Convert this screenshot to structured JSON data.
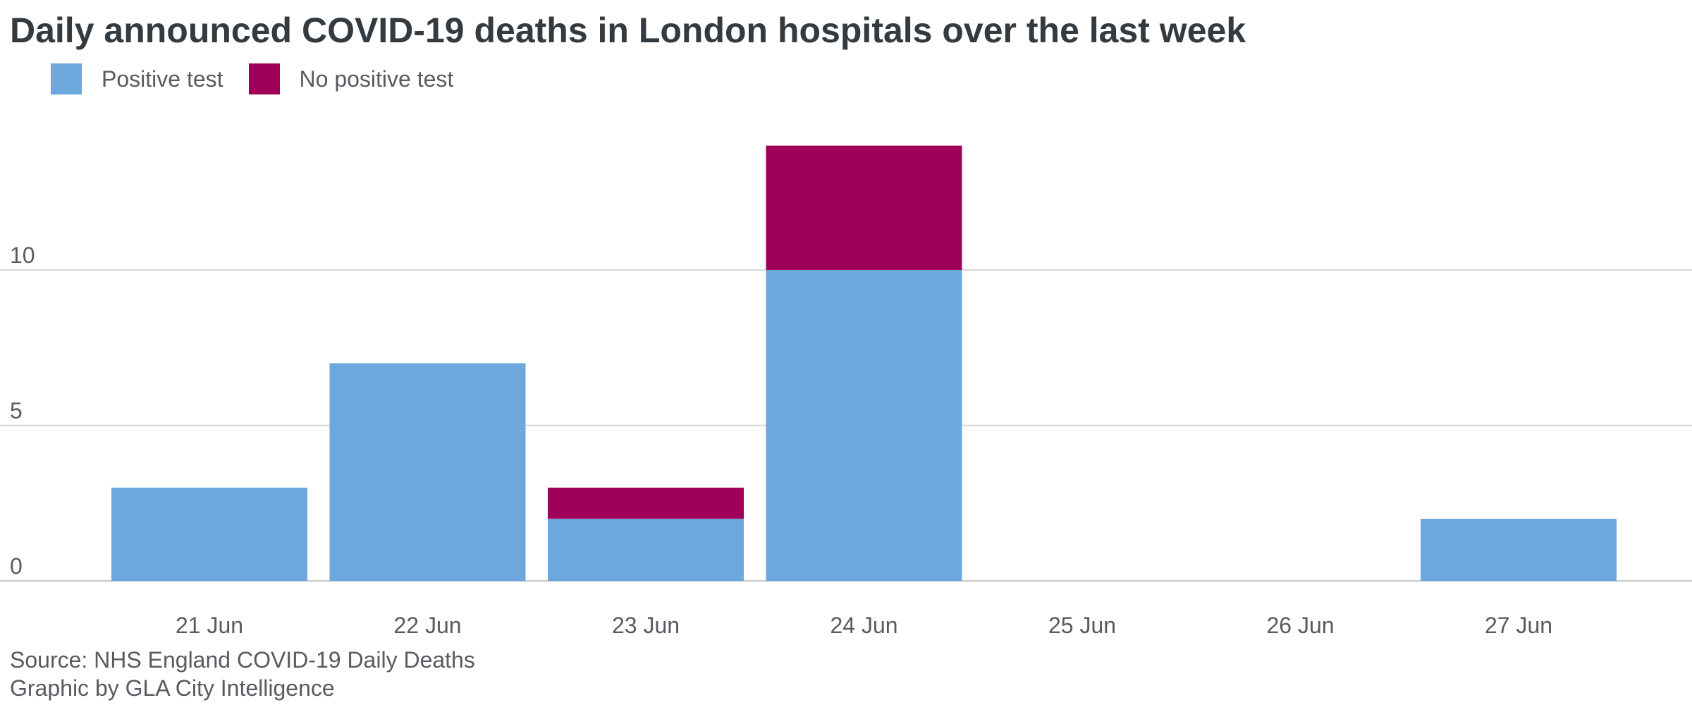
{
  "title": "Daily announced COVID-19 deaths in London hospitals over the last week",
  "legend": [
    {
      "label": "Positive test",
      "color": "#6ca7de"
    },
    {
      "label": "No positive test",
      "color": "#9e0059"
    }
  ],
  "source": "Source: NHS England COVID-19 Daily Deaths",
  "credit": "Graphic by GLA City Intelligence",
  "chart_data": {
    "type": "bar",
    "stacked": true,
    "title": "Daily announced COVID-19 deaths in London hospitals over the last week",
    "xlabel": "",
    "ylabel": "",
    "categories": [
      "21 Jun",
      "22 Jun",
      "23 Jun",
      "24 Jun",
      "25 Jun",
      "26 Jun",
      "27 Jun"
    ],
    "series": [
      {
        "name": "Positive test",
        "color": "#6ca7de",
        "values": [
          3,
          7,
          2,
          10,
          0,
          0,
          2
        ]
      },
      {
        "name": "No positive test",
        "color": "#9e0059",
        "values": [
          0,
          0,
          1,
          4,
          0,
          0,
          0
        ]
      }
    ],
    "yticks": [
      0,
      5,
      10
    ],
    "ylim": [
      0,
      14
    ],
    "grid": true,
    "legend_position": "top-left"
  }
}
